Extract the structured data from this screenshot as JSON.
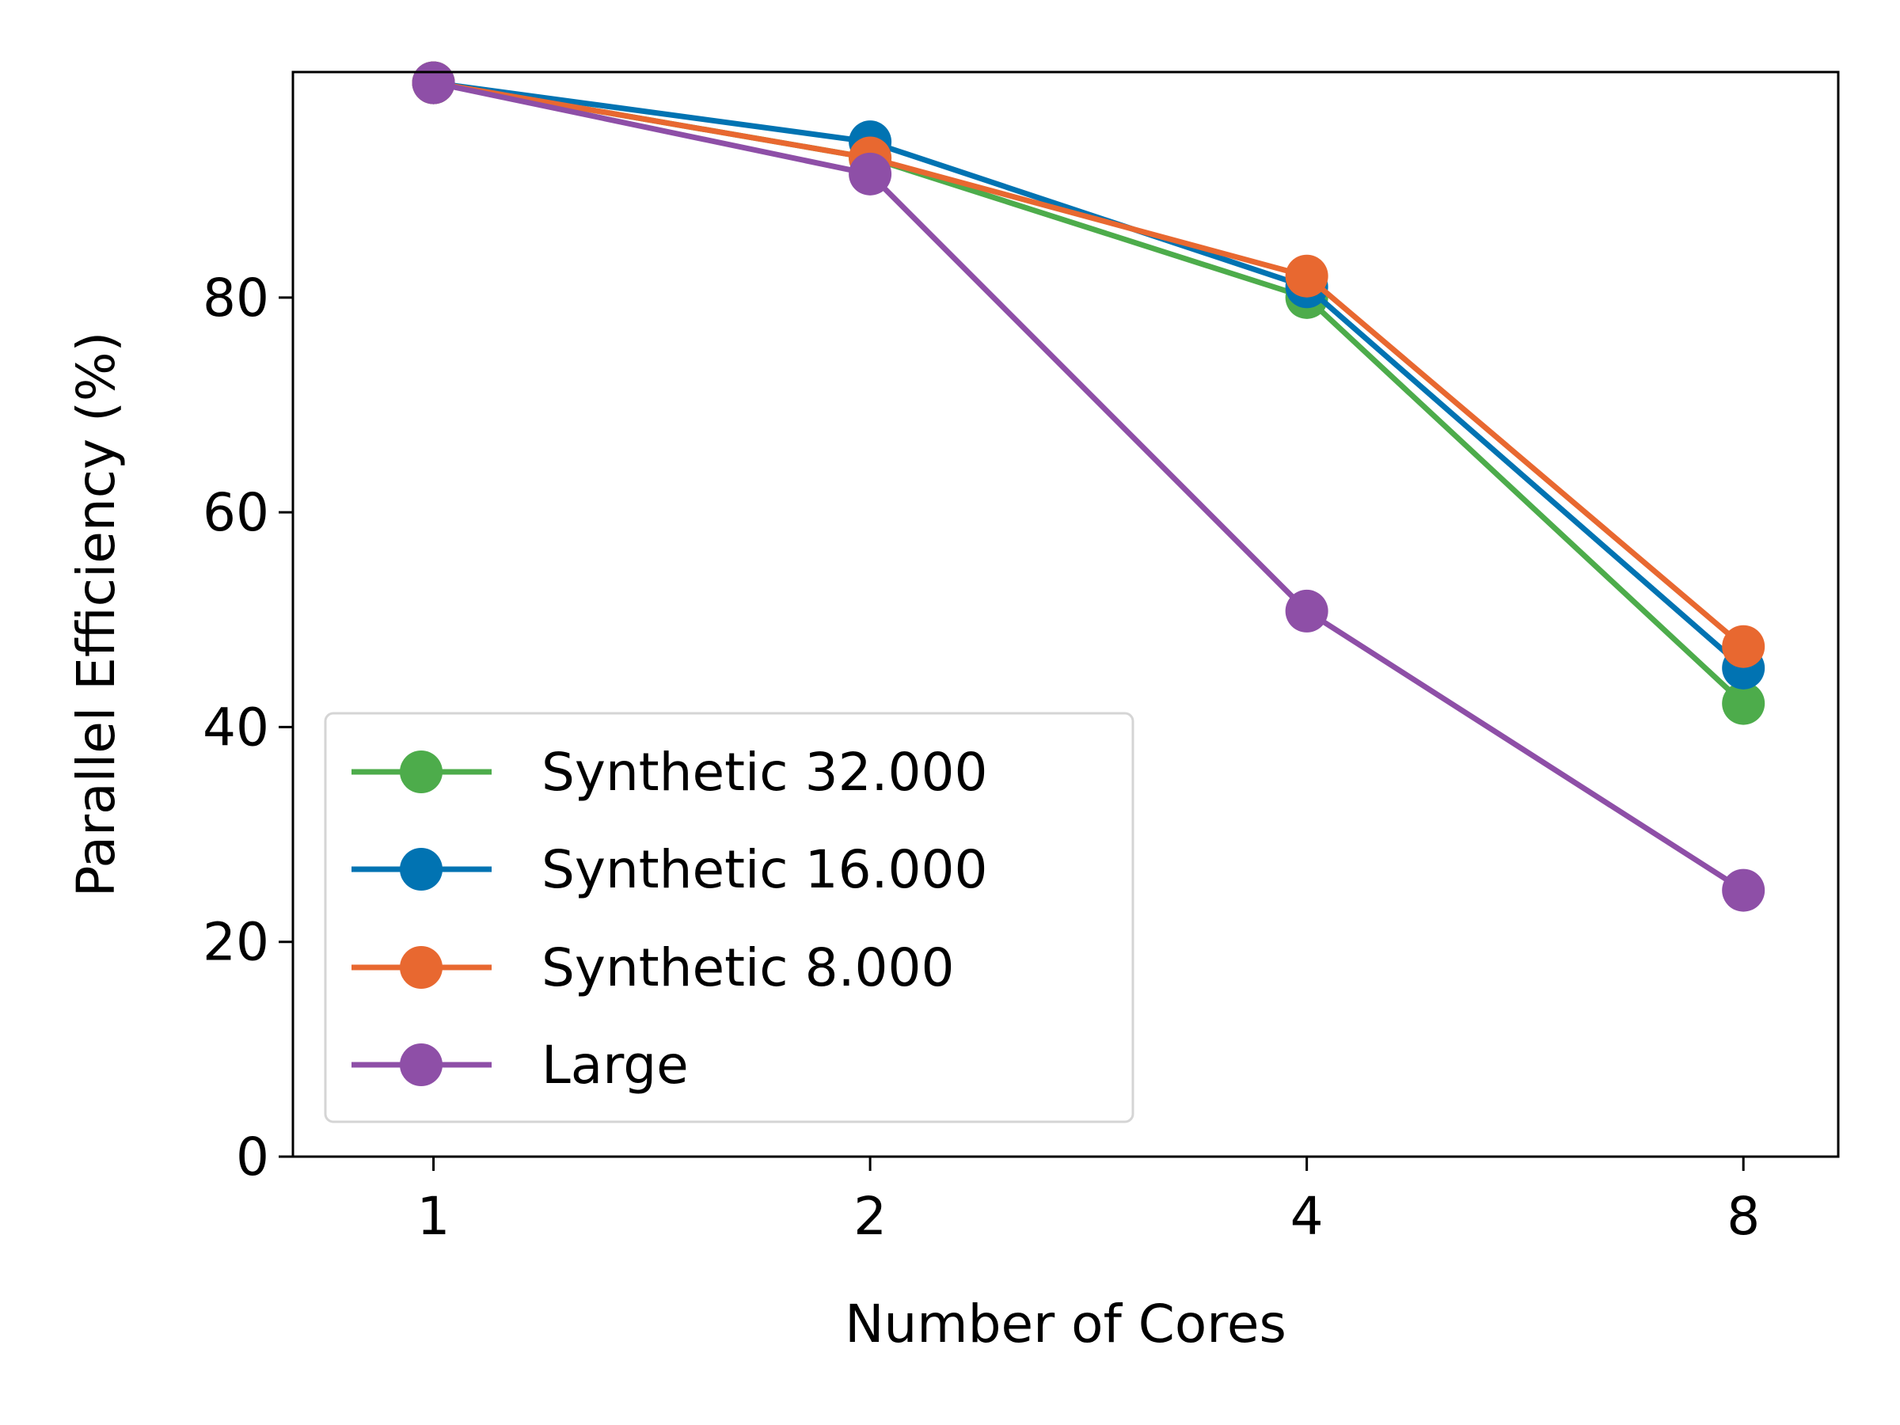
{
  "chart_data": {
    "type": "line",
    "title": "",
    "xlabel": "Number of Cores",
    "ylabel": "Parallel Efficiency (%)",
    "x": [
      1,
      2,
      4,
      8
    ],
    "x_ticks": [
      "1",
      "2",
      "4",
      "8"
    ],
    "x_scale": "log2",
    "xlim": [
      0.8,
      9.3
    ],
    "ylim": [
      0,
      101
    ],
    "y_ticks": [
      "0",
      "20",
      "40",
      "60",
      "80"
    ],
    "grid": false,
    "legend_position": "lower-left",
    "series": [
      {
        "name": "Synthetic 32.000",
        "color": "#4dac4b",
        "values": [
          100,
          93,
          80,
          42.2
        ]
      },
      {
        "name": "Synthetic 16.000",
        "color": "#0173b2",
        "values": [
          100,
          94.5,
          81,
          45.5
        ]
      },
      {
        "name": "Synthetic 8.000",
        "color": "#e86830",
        "values": [
          100,
          93,
          82,
          47.5
        ]
      },
      {
        "name": "Large",
        "color": "#8e4fa7",
        "values": [
          100,
          91.5,
          50.8,
          24.8
        ]
      }
    ]
  }
}
